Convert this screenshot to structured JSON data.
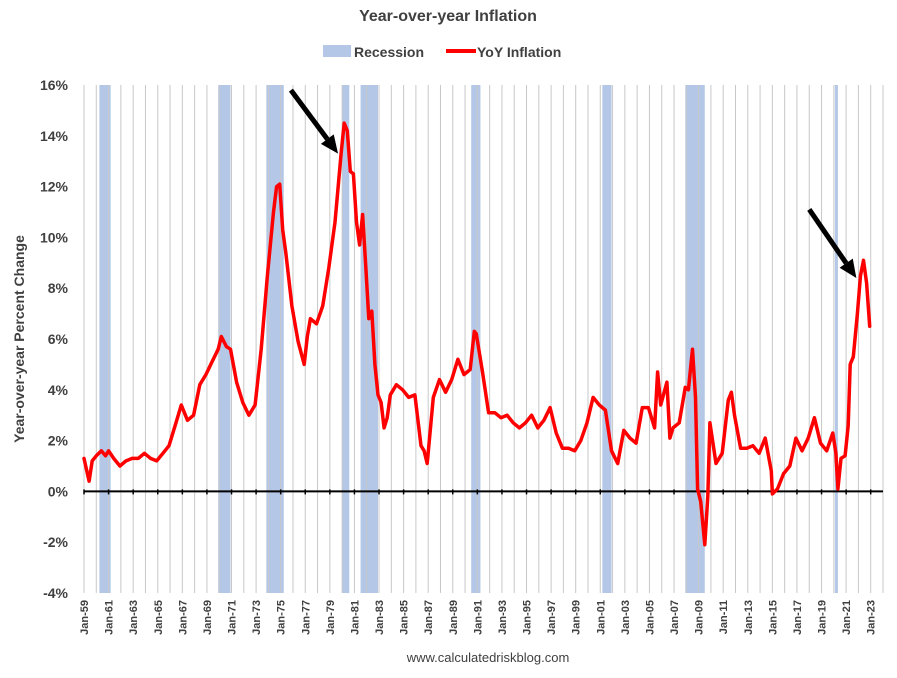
{
  "chart_data": {
    "type": "line",
    "title": "Year-over-year Inflation",
    "ylabel": "Year-over-year Percent Change",
    "xlabel": "",
    "source_text": "www.calculatedriskblog.com",
    "ylim": [
      -4,
      16
    ],
    "y_ticks": [
      -4,
      -2,
      0,
      2,
      4,
      6,
      8,
      10,
      12,
      14,
      16
    ],
    "y_tick_labels": [
      "-4%",
      "-2%",
      "0%",
      "2%",
      "4%",
      "6%",
      "8%",
      "10%",
      "12%",
      "14%",
      "16%"
    ],
    "xlim": [
      "Jan-59",
      "Dec-23"
    ],
    "x_tick_labels": [
      "Jan-59",
      "Jan-61",
      "Jan-63",
      "Jan-65",
      "Jan-67",
      "Jan-69",
      "Jan-71",
      "Jan-73",
      "Jan-75",
      "Jan-77",
      "Jan-79",
      "Jan-81",
      "Jan-83",
      "Jan-85",
      "Jan-87",
      "Jan-89",
      "Jan-91",
      "Jan-93",
      "Jan-95",
      "Jan-97",
      "Jan-99",
      "Jan-01",
      "Jan-03",
      "Jan-05",
      "Jan-07",
      "Jan-09",
      "Jan-11",
      "Jan-13",
      "Jan-15",
      "Jan-17",
      "Jan-19",
      "Jan-21",
      "Jan-23"
    ],
    "grid": "vertical",
    "legend_position": "top-center",
    "legend": [
      {
        "label": "Recession",
        "color": "#b4c7e7",
        "kind": "box"
      },
      {
        "label": "YoY Inflation",
        "color": "#ff0000",
        "kind": "line"
      }
    ],
    "recessions": [
      [
        "1960-04",
        "1961-02"
      ],
      [
        "1969-12",
        "1970-11"
      ],
      [
        "1973-11",
        "1975-03"
      ],
      [
        "1980-01",
        "1980-07"
      ],
      [
        "1981-07",
        "1982-11"
      ],
      [
        "1990-07",
        "1991-03"
      ],
      [
        "2001-03",
        "2001-11"
      ],
      [
        "2007-12",
        "2009-06"
      ],
      [
        "2020-02",
        "2020-04"
      ]
    ],
    "annotations": [
      {
        "type": "arrow",
        "from": [
          "1975-11",
          15.8
        ],
        "to": [
          "1979-09",
          13.3
        ],
        "color": "#000000"
      },
      {
        "type": "arrow",
        "from": [
          "2018-01",
          11.1
        ],
        "to": [
          "2021-11",
          8.4
        ],
        "color": "#000000"
      }
    ],
    "series": [
      {
        "name": "YoY Inflation",
        "color": "#ff0000",
        "x": [
          "1959-01",
          "1959-06",
          "1959-09",
          "1960-01",
          "1960-06",
          "1960-10",
          "1961-01",
          "1961-06",
          "1961-12",
          "1962-06",
          "1962-12",
          "1963-06",
          "1963-12",
          "1964-06",
          "1964-12",
          "1965-06",
          "1965-12",
          "1966-06",
          "1966-12",
          "1967-06",
          "1967-12",
          "1968-06",
          "1968-12",
          "1969-06",
          "1969-12",
          "1970-03",
          "1970-08",
          "1970-12",
          "1971-06",
          "1971-12",
          "1972-06",
          "1972-12",
          "1973-06",
          "1973-12",
          "1974-06",
          "1974-09",
          "1974-12",
          "1975-03",
          "1975-06",
          "1975-12",
          "1976-06",
          "1976-12",
          "1977-03",
          "1977-06",
          "1977-12",
          "1978-06",
          "1978-12",
          "1979-06",
          "1979-12",
          "1980-03",
          "1980-06",
          "1980-09",
          "1980-12",
          "1981-03",
          "1981-06",
          "1981-09",
          "1981-12",
          "1982-03",
          "1982-06",
          "1982-09",
          "1982-12",
          "1983-03",
          "1983-06",
          "1983-09",
          "1983-12",
          "1984-06",
          "1984-12",
          "1985-06",
          "1985-12",
          "1986-06",
          "1986-09",
          "1986-12",
          "1987-06",
          "1987-12",
          "1988-06",
          "1988-12",
          "1989-06",
          "1989-12",
          "1990-06",
          "1990-10",
          "1990-12",
          "1991-06",
          "1991-12",
          "1992-06",
          "1992-12",
          "1993-06",
          "1993-12",
          "1994-06",
          "1994-12",
          "1995-06",
          "1995-12",
          "1996-06",
          "1996-12",
          "1997-06",
          "1997-12",
          "1998-06",
          "1998-12",
          "1999-06",
          "1999-12",
          "2000-06",
          "2000-12",
          "2001-06",
          "2001-12",
          "2002-06",
          "2002-12",
          "2003-06",
          "2003-12",
          "2004-06",
          "2004-12",
          "2005-06",
          "2005-09",
          "2005-12",
          "2006-06",
          "2006-09",
          "2006-12",
          "2007-06",
          "2007-12",
          "2008-03",
          "2008-07",
          "2008-10",
          "2008-12",
          "2009-03",
          "2009-07",
          "2009-10",
          "2009-12",
          "2010-06",
          "2010-12",
          "2011-06",
          "2011-09",
          "2011-12",
          "2012-06",
          "2012-12",
          "2013-06",
          "2013-12",
          "2014-06",
          "2014-12",
          "2015-01",
          "2015-06",
          "2015-12",
          "2016-06",
          "2016-12",
          "2017-06",
          "2017-12",
          "2018-06",
          "2018-12",
          "2019-06",
          "2019-12",
          "2020-03",
          "2020-05",
          "2020-08",
          "2020-12",
          "2021-03",
          "2021-05",
          "2021-08",
          "2021-12",
          "2022-03",
          "2022-06",
          "2022-09",
          "2022-12"
        ],
        "values": [
          1.3,
          0.4,
          1.2,
          1.4,
          1.6,
          1.4,
          1.6,
          1.3,
          1.0,
          1.2,
          1.3,
          1.3,
          1.5,
          1.3,
          1.2,
          1.5,
          1.8,
          2.6,
          3.4,
          2.8,
          3.0,
          4.2,
          4.6,
          5.1,
          5.6,
          6.1,
          5.7,
          5.6,
          4.3,
          3.5,
          3.0,
          3.4,
          5.6,
          8.5,
          11.0,
          12.0,
          12.1,
          10.3,
          9.4,
          7.3,
          5.9,
          5.0,
          6.1,
          6.8,
          6.6,
          7.3,
          8.8,
          10.6,
          13.3,
          14.5,
          14.2,
          12.6,
          12.5,
          10.6,
          9.7,
          10.9,
          8.9,
          6.8,
          7.1,
          5.0,
          3.8,
          3.5,
          2.5,
          2.9,
          3.8,
          4.2,
          4.0,
          3.7,
          3.8,
          1.8,
          1.6,
          1.1,
          3.7,
          4.4,
          3.9,
          4.4,
          5.2,
          4.6,
          4.8,
          6.3,
          6.2,
          4.7,
          3.1,
          3.1,
          2.9,
          3.0,
          2.7,
          2.5,
          2.7,
          3.0,
          2.5,
          2.8,
          3.3,
          2.3,
          1.7,
          1.7,
          1.6,
          2.0,
          2.7,
          3.7,
          3.4,
          3.2,
          1.6,
          1.1,
          2.4,
          2.1,
          1.9,
          3.3,
          3.3,
          2.5,
          4.7,
          3.4,
          4.3,
          2.1,
          2.5,
          2.7,
          4.1,
          4.0,
          5.6,
          3.7,
          0.1,
          -0.4,
          -2.1,
          -0.2,
          2.7,
          1.1,
          1.5,
          3.6,
          3.9,
          3.0,
          1.7,
          1.7,
          1.8,
          1.5,
          2.1,
          0.8,
          -0.1,
          0.1,
          0.7,
          1.0,
          2.1,
          1.6,
          2.1,
          2.9,
          1.9,
          1.6,
          2.3,
          1.5,
          0.1,
          1.3,
          1.4,
          2.6,
          5.0,
          5.3,
          7.0,
          8.5,
          9.1,
          8.2,
          6.5
        ]
      }
    ]
  }
}
